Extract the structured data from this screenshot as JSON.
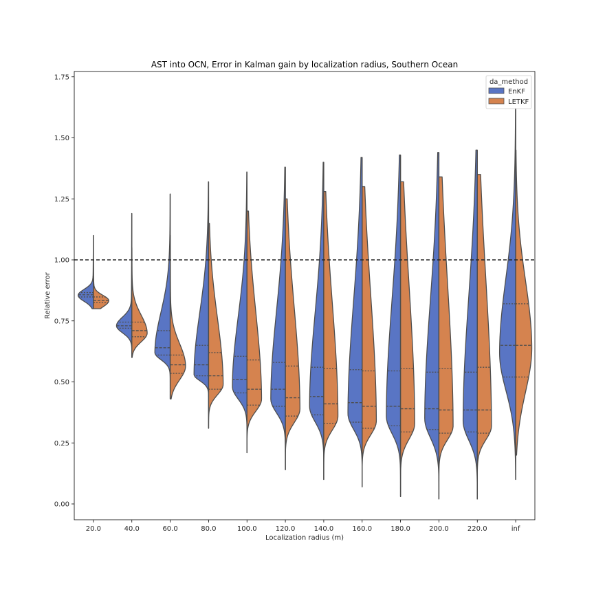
{
  "chart_data": {
    "type": "violin",
    "title": "AST into OCN, Error in Kalman gain by localization radius, Southern Ocean",
    "xlabel": "Localization radius (m)",
    "ylabel": "Relative error",
    "ylim": [
      -0.06,
      1.78
    ],
    "yticks": [
      "0.00",
      "0.25",
      "0.50",
      "0.75",
      "1.00",
      "1.25",
      "1.50",
      "1.75"
    ],
    "ytick_values": [
      0,
      0.25,
      0.5,
      0.75,
      1.0,
      1.25,
      1.5,
      1.75
    ],
    "categories": [
      "20.0",
      "40.0",
      "60.0",
      "80.0",
      "100.0",
      "120.0",
      "140.0",
      "160.0",
      "180.0",
      "200.0",
      "220.0",
      "inf"
    ],
    "reference_line": {
      "y": 1.0,
      "style": "dashed"
    },
    "legend": {
      "title": "da_method",
      "placement": "top-right",
      "entries": [
        "EnKF",
        "LETKF"
      ]
    },
    "series": [
      {
        "name": "EnKF",
        "color": "#5975c4",
        "side": "left",
        "violins": [
          {
            "min": 0.8,
            "max": 1.1,
            "q1": 0.848,
            "median": 0.857,
            "q3": 0.866,
            "mode": 0.855,
            "width": 0.4,
            "skew": 0.6
          },
          {
            "min": 0.6,
            "max": 1.19,
            "q1": 0.72,
            "median": 0.73,
            "q3": 0.745,
            "mode": 0.73,
            "width": 0.4,
            "skew": 0.8
          },
          {
            "min": 0.43,
            "max": 1.27,
            "q1": 0.61,
            "median": 0.64,
            "q3": 0.71,
            "mode": 0.62,
            "width": 0.4,
            "skew": 1.0
          },
          {
            "min": 0.31,
            "max": 1.32,
            "q1": 0.525,
            "median": 0.57,
            "q3": 0.65,
            "mode": 0.53,
            "width": 0.38,
            "skew": 1.2
          },
          {
            "min": 0.21,
            "max": 1.36,
            "q1": 0.455,
            "median": 0.51,
            "q3": 0.605,
            "mode": 0.48,
            "width": 0.38,
            "skew": 1.3
          },
          {
            "min": 0.14,
            "max": 1.38,
            "q1": 0.4,
            "median": 0.47,
            "q3": 0.58,
            "mode": 0.43,
            "width": 0.38,
            "skew": 1.4
          },
          {
            "min": 0.1,
            "max": 1.4,
            "q1": 0.365,
            "median": 0.44,
            "q3": 0.56,
            "mode": 0.4,
            "width": 0.37,
            "skew": 1.4
          },
          {
            "min": 0.07,
            "max": 1.42,
            "q1": 0.335,
            "median": 0.415,
            "q3": 0.55,
            "mode": 0.37,
            "width": 0.37,
            "skew": 1.5
          },
          {
            "min": 0.03,
            "max": 1.43,
            "q1": 0.32,
            "median": 0.4,
            "q3": 0.545,
            "mode": 0.36,
            "width": 0.37,
            "skew": 1.5
          },
          {
            "min": 0.02,
            "max": 1.44,
            "q1": 0.305,
            "median": 0.39,
            "q3": 0.54,
            "mode": 0.35,
            "width": 0.37,
            "skew": 1.5
          },
          {
            "min": 0.02,
            "max": 1.45,
            "q1": 0.295,
            "median": 0.385,
            "q3": 0.54,
            "mode": 0.34,
            "width": 0.37,
            "skew": 1.5
          },
          {
            "min": 0.1,
            "max": 1.62,
            "q1": 0.52,
            "median": 0.65,
            "q3": 0.82,
            "mode": 0.62,
            "width": 0.42,
            "skew": 0.9
          }
        ]
      },
      {
        "name": "LETKF",
        "color": "#d5834f",
        "side": "right",
        "violins": [
          {
            "min": 0.8,
            "max": 1.0,
            "q1": 0.825,
            "median": 0.833,
            "q3": 0.848,
            "mode": 0.833,
            "width": 0.4,
            "skew": 0.5
          },
          {
            "min": 0.6,
            "max": 1.05,
            "q1": 0.685,
            "median": 0.71,
            "q3": 0.745,
            "mode": 0.7,
            "width": 0.4,
            "skew": 0.8
          },
          {
            "min": 0.43,
            "max": 1.1,
            "q1": 0.535,
            "median": 0.57,
            "q3": 0.61,
            "mode": 0.565,
            "width": 0.4,
            "skew": 1.0
          },
          {
            "min": 0.31,
            "max": 1.15,
            "q1": 0.47,
            "median": 0.525,
            "q3": 0.62,
            "mode": 0.49,
            "width": 0.38,
            "skew": 1.2
          },
          {
            "min": 0.21,
            "max": 1.2,
            "q1": 0.405,
            "median": 0.47,
            "q3": 0.59,
            "mode": 0.43,
            "width": 0.38,
            "skew": 1.3
          },
          {
            "min": 0.14,
            "max": 1.25,
            "q1": 0.36,
            "median": 0.435,
            "q3": 0.565,
            "mode": 0.39,
            "width": 0.38,
            "skew": 1.4
          },
          {
            "min": 0.1,
            "max": 1.28,
            "q1": 0.33,
            "median": 0.41,
            "q3": 0.555,
            "mode": 0.36,
            "width": 0.37,
            "skew": 1.4
          },
          {
            "min": 0.07,
            "max": 1.3,
            "q1": 0.31,
            "median": 0.4,
            "q3": 0.545,
            "mode": 0.34,
            "width": 0.37,
            "skew": 1.5
          },
          {
            "min": 0.03,
            "max": 1.32,
            "q1": 0.295,
            "median": 0.39,
            "q3": 0.555,
            "mode": 0.33,
            "width": 0.37,
            "skew": 1.5
          },
          {
            "min": 0.02,
            "max": 1.34,
            "q1": 0.29,
            "median": 0.385,
            "q3": 0.555,
            "mode": 0.32,
            "width": 0.37,
            "skew": 1.5
          },
          {
            "min": 0.02,
            "max": 1.35,
            "q1": 0.29,
            "median": 0.385,
            "q3": 0.56,
            "mode": 0.32,
            "width": 0.37,
            "skew": 1.5
          },
          {
            "min": 0.2,
            "max": 1.45,
            "q1": 0.52,
            "median": 0.65,
            "q3": 0.82,
            "mode": 0.64,
            "width": 0.42,
            "skew": 0.9
          }
        ]
      }
    ]
  }
}
